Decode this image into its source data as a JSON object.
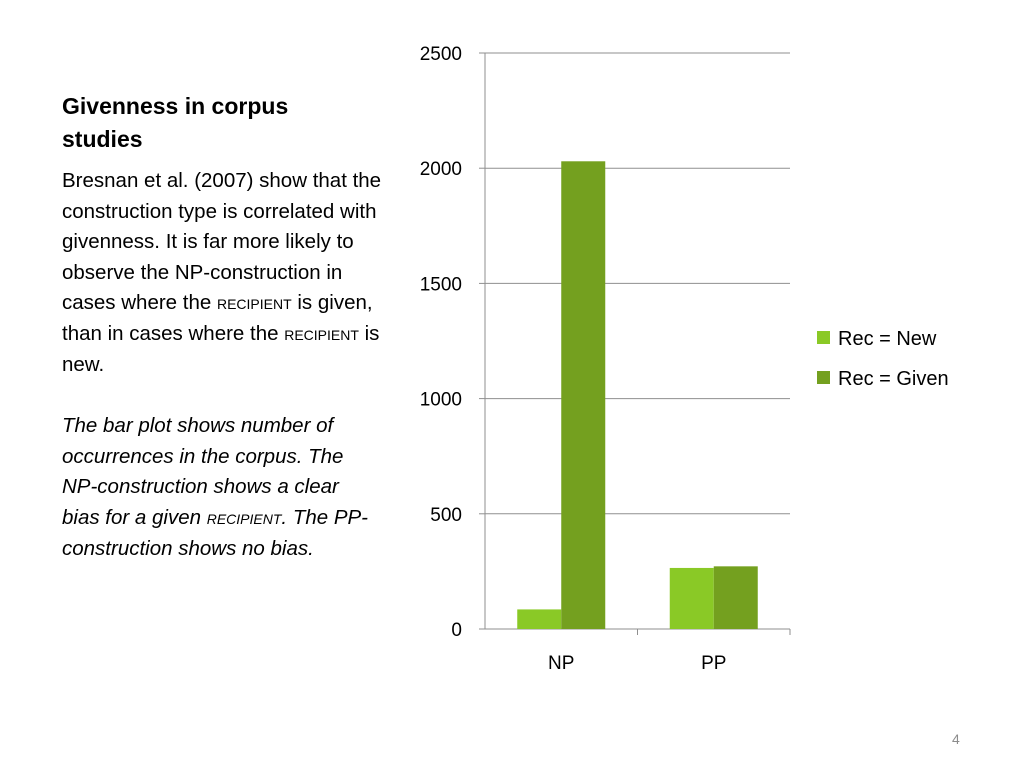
{
  "slide": {
    "title": "Givenness in corpus studies",
    "paragraph1": [
      "Bresnan et al. (2007) show that the construction type is correlated with givenness. It is far more likely to observe the NP-construction in cases where the ",
      "recipient",
      " is given, than in cases where the ",
      "recipient",
      " is new."
    ],
    "paragraph2": [
      "The bar plot shows number of occurrences in the corpus. The NP-construction shows a clear bias for a given ",
      "recipient",
      ". The PP-construction shows no bias."
    ],
    "page_number": "4"
  },
  "chart_data": {
    "type": "bar",
    "categories": [
      "NP",
      "PP"
    ],
    "series": [
      {
        "name": "Rec = New",
        "values": [
          85,
          265
        ],
        "color": "#8ac926"
      },
      {
        "name": "Rec = Given",
        "values": [
          2030,
          272
        ],
        "color": "#74a01f"
      }
    ],
    "ylim": [
      0,
      2500
    ],
    "yticks": [
      "0",
      "500",
      "1000",
      "1500",
      "2000",
      "2500"
    ],
    "grid": true,
    "legend": "right"
  }
}
